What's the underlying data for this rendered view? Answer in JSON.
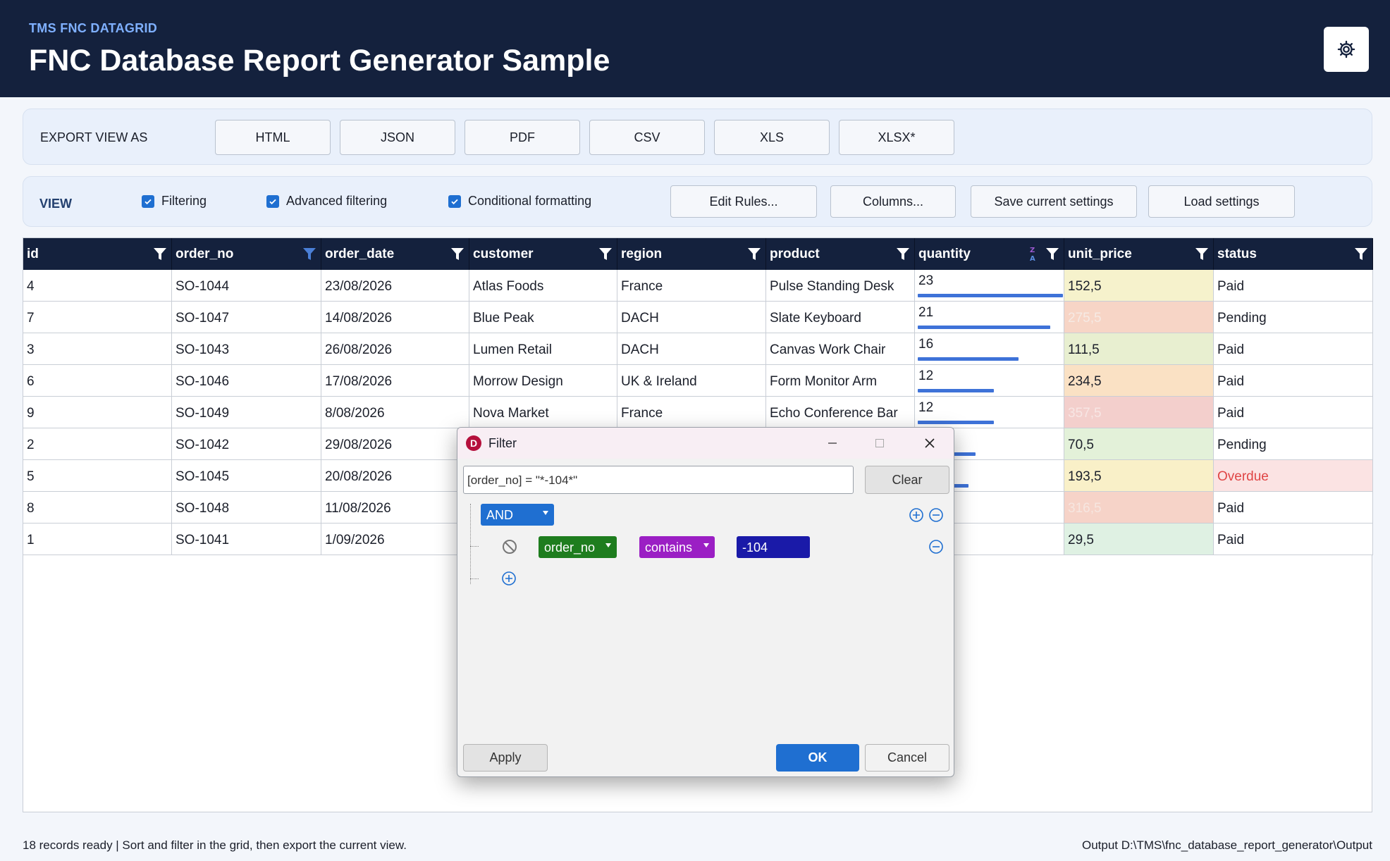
{
  "header": {
    "brand": "TMS FNC DATAGRID",
    "title": "FNC Database Report Generator Sample",
    "settings_icon": "gear-icon"
  },
  "export": {
    "label": "EXPORT VIEW AS",
    "buttons": [
      "HTML",
      "JSON",
      "PDF",
      "CSV",
      "XLS",
      "XLSX*"
    ]
  },
  "view": {
    "label": "VIEW",
    "checkboxes": [
      {
        "label": "Filtering",
        "checked": true
      },
      {
        "label": "Advanced filtering",
        "checked": true
      },
      {
        "label": "Conditional formatting",
        "checked": true
      }
    ],
    "buttons": [
      "Edit Rules...",
      "Columns...",
      "Save current settings",
      "Load settings"
    ]
  },
  "grid": {
    "columns": [
      "id",
      "order_no",
      "order_date",
      "customer",
      "region",
      "product",
      "quantity",
      "unit_price",
      "status"
    ],
    "rows": [
      {
        "id": "4",
        "order_no": "SO-1044",
        "order_date": "23/08/2026",
        "customer": "Atlas Foods",
        "region": "France",
        "product": "Pulse Standing Desk",
        "quantity": "23",
        "quantity_fraction": 1.0,
        "unit_price": "152,5",
        "price_bg": "#f6f2cc",
        "price_color": "#1b1f2a",
        "status": "Paid",
        "status_color": "#1b1f2a",
        "status_bg": "#ffffff"
      },
      {
        "id": "7",
        "order_no": "SO-1047",
        "order_date": "14/08/2026",
        "customer": "Blue Peak",
        "region": "DACH",
        "product": "Slate Keyboard",
        "quantity": "21",
        "quantity_fraction": 0.913,
        "unit_price": "275,5",
        "price_bg": "#f7d5c6",
        "price_color": "#f6eae4",
        "status": "Pending",
        "status_color": "#1b1f2a",
        "status_bg": "#ffffff"
      },
      {
        "id": "3",
        "order_no": "SO-1043",
        "order_date": "26/08/2026",
        "customer": "Lumen Retail",
        "region": "DACH",
        "product": "Canvas Work Chair",
        "quantity": "16",
        "quantity_fraction": 0.696,
        "unit_price": "111,5",
        "price_bg": "#e8efd0",
        "price_color": "#1b1f2a",
        "status": "Paid",
        "status_color": "#1b1f2a",
        "status_bg": "#ffffff"
      },
      {
        "id": "6",
        "order_no": "SO-1046",
        "order_date": "17/08/2026",
        "customer": "Morrow Design",
        "region": "UK & Ireland",
        "product": "Form Monitor Arm",
        "quantity": "12",
        "quantity_fraction": 0.522,
        "unit_price": "234,5",
        "price_bg": "#fae1c4",
        "price_color": "#1b1f2a",
        "status": "Paid",
        "status_color": "#1b1f2a",
        "status_bg": "#ffffff"
      },
      {
        "id": "9",
        "order_no": "SO-1049",
        "order_date": "8/08/2026",
        "customer": "Nova Market",
        "region": "France",
        "product": "Echo Conference Bar",
        "quantity": "12",
        "quantity_fraction": 0.522,
        "unit_price": "357,5",
        "price_bg": "#f3cfcc",
        "price_color": "#f7e6e4",
        "status": "Paid",
        "status_color": "#1b1f2a",
        "status_bg": "#ffffff"
      },
      {
        "id": "2",
        "order_no": "SO-1042",
        "order_date": "29/08/2026",
        "customer": "",
        "region": "",
        "product": "",
        "quantity": "",
        "quantity_fraction": 0.4,
        "unit_price": "70,5",
        "price_bg": "#e3f1d9",
        "price_color": "#1b1f2a",
        "status": "Pending",
        "status_color": "#1b1f2a",
        "status_bg": "#ffffff"
      },
      {
        "id": "5",
        "order_no": "SO-1045",
        "order_date": "20/08/2026",
        "customer": "",
        "region": "",
        "product": "",
        "quantity": "",
        "quantity_fraction": 0.35,
        "unit_price": "193,5",
        "price_bg": "#f9f0c8",
        "price_color": "#1b1f2a",
        "status": "Overdue",
        "status_color": "#e04545",
        "status_bg": "#fbe3e3"
      },
      {
        "id": "8",
        "order_no": "SO-1048",
        "order_date": "11/08/2026",
        "customer": "",
        "region": "",
        "product": "",
        "quantity": "",
        "quantity_fraction": 0,
        "unit_price": "316,5",
        "price_bg": "#f6d3c8",
        "price_color": "#f6e6e0",
        "status": "Paid",
        "status_color": "#1b1f2a",
        "status_bg": "#ffffff"
      },
      {
        "id": "1",
        "order_no": "SO-1041",
        "order_date": "1/09/2026",
        "customer": "",
        "region": "",
        "product": "",
        "quantity": "",
        "quantity_fraction": 0,
        "unit_price": "29,5",
        "price_bg": "#dff1e3",
        "price_color": "#1b1f2a",
        "status": "Paid",
        "status_color": "#1b1f2a",
        "status_bg": "#ffffff"
      }
    ]
  },
  "filter_dialog": {
    "title": "Filter",
    "expression": "[order_no] = \"*-104*\"",
    "clear_label": "Clear",
    "group_operator": "AND",
    "condition": {
      "field": "order_no",
      "operator": "contains",
      "value": "-104"
    },
    "apply_label": "Apply",
    "ok_label": "OK",
    "cancel_label": "Cancel"
  },
  "statusbar": {
    "left": "18 records ready  |  Sort and filter in the grid, then export the current view.",
    "right": "Output  D:\\TMS\\fnc_database_report_generator\\Output"
  },
  "colors": {
    "header_bg": "#14213d",
    "accent": "#1f6fd1",
    "ok_button": "#1f6fd1",
    "and_pill": "#1f6fd1",
    "field_pill": "#1e7d1e",
    "operator_pill": "#9b1fc4",
    "value_pill": "#1a1aa8",
    "overdue": "#e04545"
  }
}
